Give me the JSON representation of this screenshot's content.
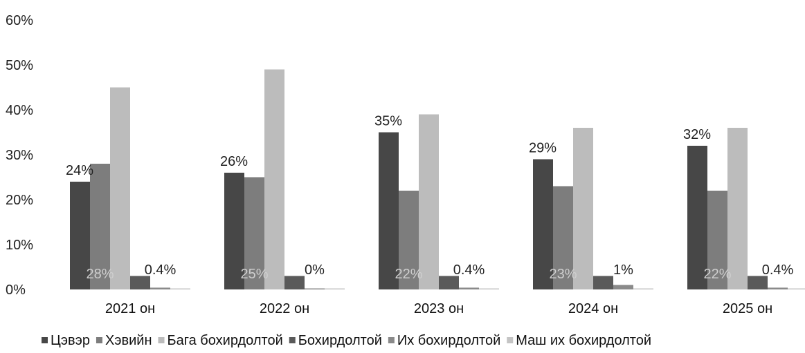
{
  "chart_data": {
    "type": "bar",
    "categories": [
      "2021 он",
      "2022 он",
      "2023 он",
      "2024 он",
      "2025 он"
    ],
    "ylim": [
      0,
      60
    ],
    "yticks": [
      "0%",
      "10%",
      "20%",
      "30%",
      "40%",
      "50%",
      "60%"
    ],
    "grid": false,
    "legend_position": "bottom",
    "series": [
      {
        "name": "Цэвэр",
        "color": "#474747",
        "values": [
          24,
          26,
          35,
          29,
          32
        ],
        "labels": [
          "24%",
          "26%",
          "35%",
          "29%",
          "32%"
        ]
      },
      {
        "name": "Хэвийн",
        "color": "#7d7d7d",
        "values": [
          28,
          25,
          22,
          23,
          22
        ],
        "labels": [
          "28%",
          "25%",
          "22%",
          "23%",
          "22%"
        ]
      },
      {
        "name": "Бага  бохирдолтой",
        "color": "#bcbcbc",
        "values": [
          45,
          49,
          39,
          36,
          36
        ],
        "labels": []
      },
      {
        "name": "Бохирдолтой",
        "color": "#5a5a5a",
        "values": [
          3,
          3,
          3,
          3,
          3
        ],
        "labels": []
      },
      {
        "name": "Их бохирдолтой",
        "color": "#8a8a8a",
        "values": [
          0.4,
          0,
          0.4,
          1,
          0.4
        ],
        "labels": [
          "0.4%",
          "0%",
          "0.4%",
          "1%",
          "0.4%"
        ]
      },
      {
        "name": "Маш их бохирдолтой",
        "color": "#c4c4c4",
        "values": [
          0.2,
          0.1,
          0.2,
          0.2,
          0.2
        ],
        "labels": []
      }
    ]
  }
}
